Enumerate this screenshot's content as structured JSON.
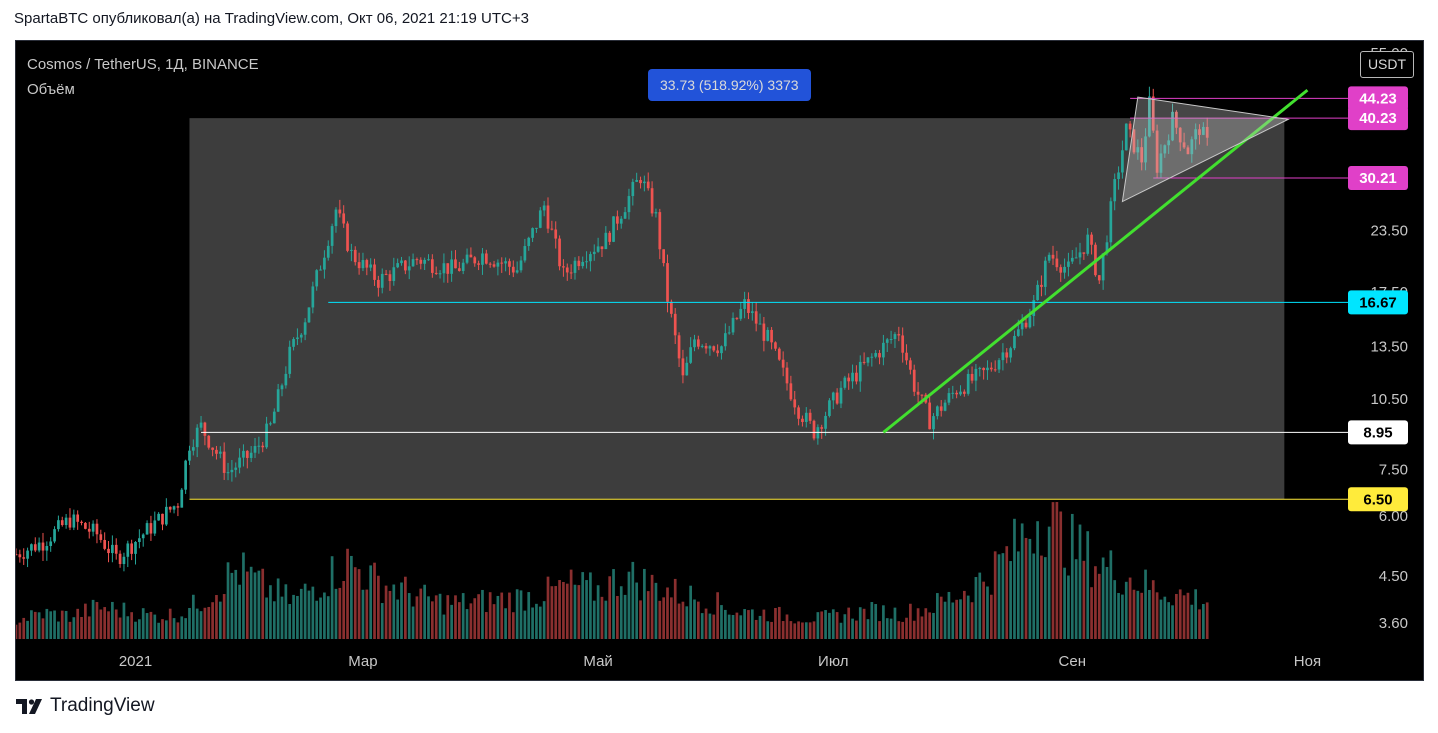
{
  "header": {
    "published_line": "SpartaBTC опубликовал(а) на TradingView.com, Окт 06, 2021 21:19 UTC+3"
  },
  "legend": {
    "symbol_line": "Cosmos / TetherUS, 1Д, BINANCE",
    "volume_label": "Объём"
  },
  "currency": "USDT",
  "measure": {
    "label": "33.73 (518.92%) 3373"
  },
  "footer": {
    "brand": "TradingView"
  },
  "colors": {
    "up": "#26a69a",
    "down": "#ef5350",
    "trendline": "#42e02f",
    "magenta": "#e040c8",
    "cyan": "#00e5ff",
    "yellow": "#ffeb3b",
    "white_level": "#ffffff",
    "measure_box": "#2962ff"
  },
  "chart_data": {
    "type": "candlestick",
    "title": "Cosmos / TetherUS, 1Д, BINANCE",
    "timeframe": "1Д",
    "exchange": "BINANCE",
    "y_scale": "log",
    "ylim": [
      3.3,
      56
    ],
    "xlim": [
      "2020-12-01",
      "2021-11-11"
    ],
    "y_ticks": [
      "3.60",
      "4.50",
      "6.00",
      "7.50",
      "10.50",
      "13.50",
      "17.50",
      "23.50",
      "55.00"
    ],
    "x_ticks": [
      {
        "date": "2021-01-01",
        "label": "2021"
      },
      {
        "date": "2021-03-01",
        "label": "Мар"
      },
      {
        "date": "2021-05-01",
        "label": "Май"
      },
      {
        "date": "2021-07-01",
        "label": "Июл"
      },
      {
        "date": "2021-09-01",
        "label": "Сен"
      },
      {
        "date": "2021-11-01",
        "label": "Ноя"
      }
    ],
    "price_series": [
      {
        "date": "2020-12-01",
        "close": 5.0
      },
      {
        "date": "2020-12-08",
        "close": 5.3
      },
      {
        "date": "2020-12-15",
        "close": 5.9
      },
      {
        "date": "2020-12-22",
        "close": 5.5
      },
      {
        "date": "2020-12-27",
        "close": 4.9
      },
      {
        "date": "2021-01-04",
        "close": 5.6
      },
      {
        "date": "2021-01-12",
        "close": 6.4
      },
      {
        "date": "2021-01-15",
        "close": 8.5
      },
      {
        "date": "2021-01-18",
        "close": 9.2
      },
      {
        "date": "2021-01-25",
        "close": 7.4
      },
      {
        "date": "2021-02-01",
        "close": 8.2
      },
      {
        "date": "2021-02-05",
        "close": 9.2
      },
      {
        "date": "2021-02-10",
        "close": 13.0
      },
      {
        "date": "2021-02-14",
        "close": 15.5
      },
      {
        "date": "2021-02-18",
        "close": 20.0
      },
      {
        "date": "2021-02-22",
        "close": 26.0
      },
      {
        "date": "2021-02-26",
        "close": 21.0
      },
      {
        "date": "2021-03-05",
        "close": 18.5
      },
      {
        "date": "2021-03-15",
        "close": 20.5
      },
      {
        "date": "2021-03-25",
        "close": 19.5
      },
      {
        "date": "2021-04-01",
        "close": 21.0
      },
      {
        "date": "2021-04-10",
        "close": 19.5
      },
      {
        "date": "2021-04-17",
        "close": 26.5
      },
      {
        "date": "2021-04-22",
        "close": 19.0
      },
      {
        "date": "2021-04-27",
        "close": 21.0
      },
      {
        "date": "2021-05-03",
        "close": 22.5
      },
      {
        "date": "2021-05-12",
        "close": 30.5
      },
      {
        "date": "2021-05-16",
        "close": 25.0
      },
      {
        "date": "2021-05-19",
        "close": 17.0
      },
      {
        "date": "2021-05-23",
        "close": 11.5
      },
      {
        "date": "2021-05-26",
        "close": 14.0
      },
      {
        "date": "2021-06-02",
        "close": 13.5
      },
      {
        "date": "2021-06-08",
        "close": 16.5
      },
      {
        "date": "2021-06-14",
        "close": 14.0
      },
      {
        "date": "2021-06-22",
        "close": 10.0
      },
      {
        "date": "2021-06-26",
        "close": 9.0
      },
      {
        "date": "2021-07-03",
        "close": 11.0
      },
      {
        "date": "2021-07-12",
        "close": 13.0
      },
      {
        "date": "2021-07-18",
        "close": 14.5
      },
      {
        "date": "2021-07-22",
        "close": 11.2
      },
      {
        "date": "2021-07-26",
        "close": 9.5
      },
      {
        "date": "2021-08-02",
        "close": 11.0
      },
      {
        "date": "2021-08-10",
        "close": 12.0
      },
      {
        "date": "2021-08-17",
        "close": 14.0
      },
      {
        "date": "2021-08-22",
        "close": 16.5
      },
      {
        "date": "2021-08-26",
        "close": 21.0
      },
      {
        "date": "2021-08-31",
        "close": 19.5
      },
      {
        "date": "2021-09-05",
        "close": 22.5
      },
      {
        "date": "2021-09-08",
        "close": 18.5
      },
      {
        "date": "2021-09-12",
        "close": 29.0
      },
      {
        "date": "2021-09-15",
        "close": 38.0
      },
      {
        "date": "2021-09-19",
        "close": 33.0
      },
      {
        "date": "2021-09-21",
        "close": 43.0
      },
      {
        "date": "2021-09-23",
        "close": 32.0
      },
      {
        "date": "2021-09-27",
        "close": 40.0
      },
      {
        "date": "2021-10-01",
        "close": 34.5
      },
      {
        "date": "2021-10-04",
        "close": 38.5
      },
      {
        "date": "2021-10-06",
        "close": 35.5
      }
    ],
    "volume": {
      "label": "Объём",
      "relative_series": [
        0.15,
        0.2,
        0.18,
        0.25,
        0.22,
        0.18,
        0.2,
        0.35,
        0.55,
        0.4,
        0.3,
        0.45,
        0.6,
        0.45,
        0.38,
        0.3,
        0.28,
        0.3,
        0.32,
        0.35,
        0.42,
        0.38,
        0.5,
        0.42,
        0.35,
        0.3,
        0.22,
        0.2,
        0.18,
        0.16,
        0.2,
        0.22,
        0.2,
        0.25,
        0.35,
        0.48,
        0.7,
        1.0,
        0.75,
        0.6,
        0.5,
        0.4,
        0.35,
        0.3
      ]
    },
    "horizontal_levels": [
      {
        "value": 44.23,
        "label": "44.23",
        "color": "magenta"
      },
      {
        "value": 40.23,
        "label": "40.23",
        "color": "magenta"
      },
      {
        "value": 30.21,
        "label": "30.21",
        "color": "magenta"
      },
      {
        "value": 16.67,
        "label": "16.67",
        "color": "cyan"
      },
      {
        "value": 8.95,
        "label": "8.95",
        "color": "white_level"
      },
      {
        "value": 6.5,
        "label": "6.50",
        "color": "yellow"
      }
    ],
    "price_range_box": {
      "start_date": "2021-01-15",
      "end_date": "2021-10-26",
      "low": 6.5,
      "high": 40.23,
      "change": 33.73,
      "change_percent": 518.92,
      "ticks": 3373
    },
    "trendline": {
      "start": {
        "date": "2021-07-14",
        "value": 8.95
      },
      "end": {
        "date": "2021-11-01",
        "value": 46.0
      }
    },
    "triangle_pattern": [
      {
        "date": "2021-09-18",
        "value": 44.5
      },
      {
        "date": "2021-10-27",
        "value": 40.0
      },
      {
        "date": "2021-09-14",
        "value": 27.0
      }
    ]
  }
}
